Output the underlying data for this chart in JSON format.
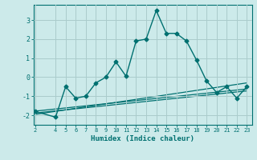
{
  "xlabel": "Humidex (Indice chaleur)",
  "x": [
    2,
    4,
    5,
    6,
    7,
    8,
    9,
    10,
    11,
    12,
    13,
    14,
    15,
    16,
    17,
    18,
    19,
    20,
    21,
    22,
    23
  ],
  "y_main": [
    -1.8,
    -2.1,
    -0.5,
    -1.1,
    -1.0,
    -0.3,
    0.0,
    0.8,
    0.05,
    1.9,
    2.0,
    3.5,
    2.3,
    2.3,
    1.9,
    0.9,
    -0.2,
    -0.8,
    -0.5,
    -1.1,
    -0.5
  ],
  "regression_lines": [
    {
      "x0": 2,
      "y0": -1.78,
      "x1": 23,
      "y1": -0.62
    },
    {
      "x0": 2,
      "y0": -1.88,
      "x1": 23,
      "y1": -0.72
    },
    {
      "x0": 2,
      "y0": -1.95,
      "x1": 23,
      "y1": -0.3
    }
  ],
  "line_color": "#007070",
  "bg_color": "#cceaea",
  "grid_color": "#aacccc",
  "ylim": [
    -2.5,
    3.8
  ],
  "xlim": [
    1.8,
    23.5
  ],
  "yticks": [
    -2,
    -1,
    0,
    1,
    2,
    3
  ],
  "xticks": [
    2,
    4,
    5,
    6,
    7,
    8,
    9,
    10,
    11,
    12,
    13,
    14,
    15,
    16,
    17,
    18,
    19,
    20,
    21,
    22,
    23
  ]
}
